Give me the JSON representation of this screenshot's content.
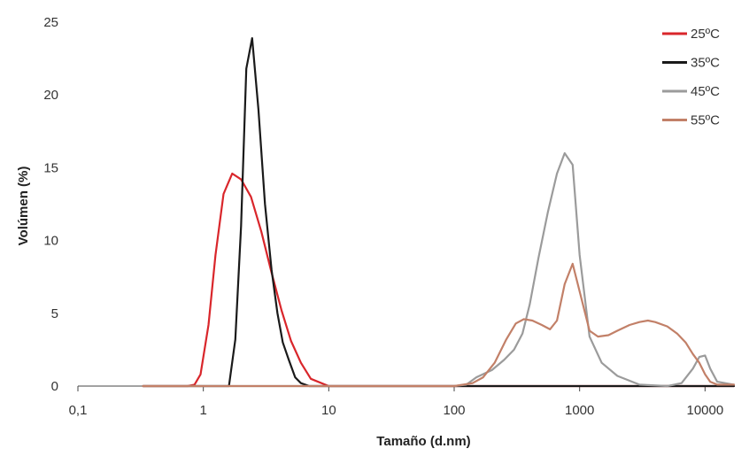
{
  "chart_data": {
    "type": "line",
    "xlabel": "Tamaño (d.nm)",
    "ylabel": "Volúmen (%)",
    "x_scale": "log",
    "xlim": [
      0.1,
      17000
    ],
    "ylim": [
      0,
      25
    ],
    "x_ticks": [
      0.1,
      1,
      10,
      100,
      1000,
      10000
    ],
    "x_tick_labels": [
      "0,1",
      "1",
      "10",
      "100",
      "1000",
      "10000"
    ],
    "y_ticks": [
      0,
      5,
      10,
      15,
      20,
      25
    ],
    "y_tick_labels": [
      "0",
      "5",
      "10",
      "15",
      "20",
      "25"
    ],
    "grid": false,
    "legend_position": "top-right",
    "series": [
      {
        "name": "25ºC",
        "color": "#d9262b",
        "x": [
          0.33,
          0.5,
          0.75,
          0.85,
          0.95,
          1.1,
          1.25,
          1.45,
          1.7,
          2.0,
          2.4,
          2.9,
          3.5,
          4.2,
          5.0,
          6.0,
          7.2,
          10,
          100,
          1000,
          17000
        ],
        "y": [
          0,
          0,
          0,
          0.1,
          0.8,
          4.2,
          9.0,
          13.2,
          14.6,
          14.2,
          13.0,
          10.6,
          7.8,
          5.2,
          3.1,
          1.6,
          0.5,
          0,
          0,
          0,
          0
        ]
      },
      {
        "name": "35ºC",
        "color": "#1a1a1a",
        "x": [
          0.33,
          1.0,
          1.6,
          1.8,
          2.0,
          2.2,
          2.45,
          2.75,
          3.1,
          3.5,
          3.9,
          4.3,
          4.8,
          5.4,
          6.0,
          7.0,
          10,
          100,
          1000,
          12000,
          17000
        ],
        "y": [
          0,
          0,
          0,
          3.2,
          11.0,
          21.8,
          23.9,
          19.0,
          12.5,
          8.0,
          5.0,
          3.0,
          1.8,
          0.6,
          0.2,
          0,
          0,
          0,
          0,
          0,
          0
        ]
      },
      {
        "name": "45ºC",
        "color": "#9b9b9b",
        "x": [
          0.33,
          10,
          100,
          125,
          150,
          200,
          250,
          300,
          350,
          400,
          470,
          560,
          660,
          760,
          880,
          1000,
          1200,
          1500,
          2000,
          3000,
          5000,
          6500,
          8000,
          9000,
          10000,
          11000,
          12500,
          17000
        ],
        "y": [
          0,
          0,
          0,
          0.1,
          0.6,
          1.1,
          1.8,
          2.5,
          3.6,
          5.6,
          8.8,
          12.0,
          14.6,
          16.0,
          15.2,
          9.0,
          3.4,
          1.6,
          0.7,
          0.1,
          0,
          0.2,
          1.2,
          2.0,
          2.1,
          1.2,
          0.3,
          0.1
        ]
      },
      {
        "name": "55ºC",
        "color": "#c28068",
        "x": [
          0.33,
          10,
          100,
          140,
          170,
          210,
          260,
          310,
          360,
          420,
          500,
          580,
          660,
          760,
          880,
          1000,
          1200,
          1400,
          1700,
          2000,
          2500,
          3000,
          3500,
          4000,
          5000,
          6000,
          7000,
          8000,
          9000,
          10000,
          11000,
          12500,
          17000
        ],
        "y": [
          0,
          0,
          0,
          0.2,
          0.6,
          1.6,
          3.2,
          4.3,
          4.6,
          4.5,
          4.2,
          3.9,
          4.5,
          7.0,
          8.4,
          6.5,
          3.8,
          3.4,
          3.5,
          3.8,
          4.2,
          4.4,
          4.5,
          4.4,
          4.1,
          3.6,
          3.0,
          2.2,
          1.6,
          0.8,
          0.3,
          0.1,
          0.1
        ]
      }
    ]
  }
}
